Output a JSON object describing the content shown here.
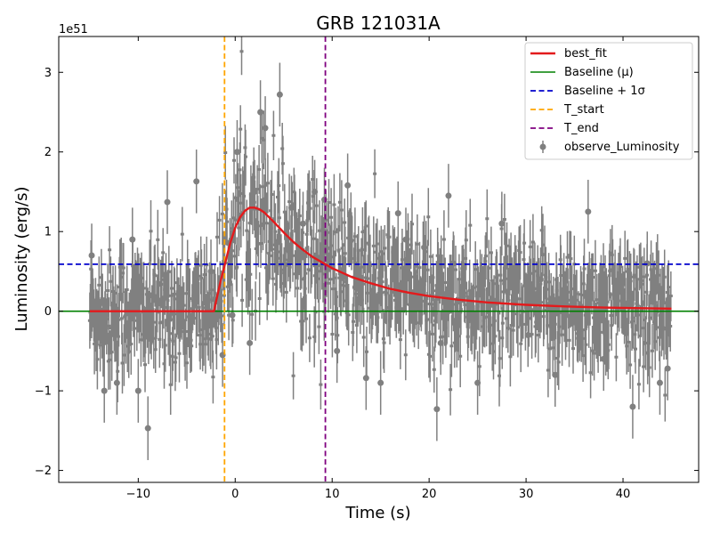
{
  "chart_data": {
    "type": "scatter",
    "title": "GRB 121031A",
    "xlabel": "Time (s)",
    "ylabel": "Luminosity (erg/s)",
    "y_scale_label": "1e51",
    "xlim": [
      -18.2,
      47.8
    ],
    "ylim": [
      -2.15,
      3.45
    ],
    "x_ticks": [
      -10,
      0,
      10,
      20,
      30,
      40
    ],
    "x_tick_labels": [
      "−10",
      "0",
      "10",
      "20",
      "30",
      "40"
    ],
    "y_ticks": [
      -2,
      -1,
      0,
      1,
      2,
      3
    ],
    "y_tick_labels": [
      "−2",
      "−1",
      "0",
      "1",
      "2",
      "3"
    ],
    "grid": false,
    "legend_position": "top-right",
    "colors": {
      "observed": "#808080",
      "best_fit": "#e31a1c",
      "baseline": "#008000",
      "baseline_sigma": "#0000cc",
      "t_start": "#ffa500",
      "t_end": "#800080"
    },
    "baseline_mu": 0.0,
    "baseline_plus_1sigma": 0.59,
    "t_start": -1.1,
    "t_end": 9.3,
    "best_fit": {
      "x": [
        -2.2,
        -1.5,
        -1.0,
        -0.5,
        0.0,
        0.5,
        1.0,
        1.5,
        2.0,
        2.5,
        3.0,
        4.0,
        5.0,
        6.0,
        7.0,
        8.0,
        9.0,
        10.0,
        12.0,
        14.0,
        16.0,
        18.0,
        20.0,
        23.0,
        26.0,
        30.0,
        34.0,
        38.0,
        42.0,
        45.0
      ],
      "y": [
        0.0,
        0.38,
        0.62,
        0.86,
        1.05,
        1.18,
        1.26,
        1.3,
        1.3,
        1.28,
        1.24,
        1.12,
        0.99,
        0.87,
        0.77,
        0.68,
        0.61,
        0.54,
        0.43,
        0.35,
        0.28,
        0.23,
        0.19,
        0.145,
        0.11,
        0.08,
        0.06,
        0.045,
        0.037,
        0.032
      ]
    },
    "observed_model": {
      "t_min": -15.0,
      "t_max": 45.0,
      "dt": 0.06,
      "error_bar": 0.34,
      "scatter": 0.38
    },
    "highlighted_points": {
      "x": [
        -14.8,
        -13.5,
        -12.2,
        -10.6,
        -10.0,
        -9.0,
        -8.8,
        -7.0,
        -4.0,
        -2.5,
        -1.3,
        -0.3,
        0.2,
        0.6,
        1.5,
        2.0,
        2.6,
        3.1,
        4.6,
        5.8,
        7.0,
        8.2,
        9.2,
        10.5,
        11.6,
        12.4,
        13.5,
        15.0,
        16.8,
        17.6,
        18.5,
        19.5,
        20.8,
        21.2,
        22.0,
        22.5,
        25.0,
        27.5,
        30.2,
        31.5,
        33.0,
        36.4,
        38.0,
        40.5,
        41.0,
        42.5,
        43.8,
        44.6
      ],
      "y": [
        0.7,
        -1.0,
        -0.9,
        0.9,
        -1.0,
        -1.47,
        0.2,
        1.37,
        1.63,
        0.5,
        -0.55,
        -0.05,
        2.0,
        1.2,
        -0.4,
        1.5,
        2.5,
        2.3,
        2.72,
        1.3,
        1.1,
        1.5,
        1.4,
        -0.5,
        1.58,
        0.3,
        -0.84,
        -0.9,
        1.23,
        0.9,
        0.2,
        0.8,
        -1.23,
        -0.4,
        1.45,
        0.6,
        -0.9,
        1.1,
        -0.3,
        0.4,
        -0.8,
        1.25,
        -0.6,
        0.1,
        -1.2,
        0.6,
        -0.9,
        -0.72
      ]
    },
    "legend": {
      "entries": [
        "best_fit",
        "Baseline (μ)",
        "Baseline + 1σ",
        "T_start",
        "T_end",
        "observe_Luminosity"
      ]
    }
  }
}
